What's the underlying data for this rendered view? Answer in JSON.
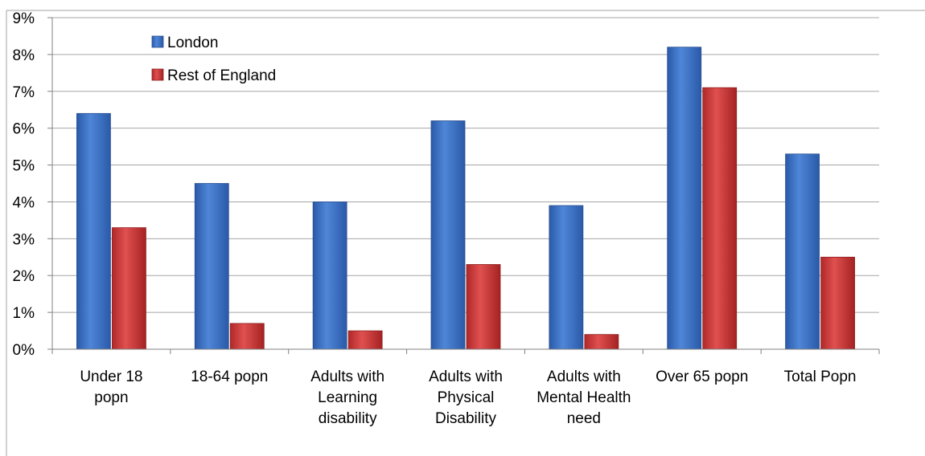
{
  "chart_data": {
    "type": "bar",
    "title": "",
    "xlabel": "",
    "ylabel": "",
    "ylim": [
      0,
      9
    ],
    "y_ticks": [
      "0%",
      "1%",
      "2%",
      "3%",
      "4%",
      "5%",
      "6%",
      "7%",
      "8%",
      "9%"
    ],
    "y_unit": "%",
    "grid": true,
    "legend_position": "top-left",
    "categories": [
      [
        "Under 18",
        "popn"
      ],
      [
        "18-64 popn"
      ],
      [
        "Adults with",
        "Learning",
        "disability"
      ],
      [
        "Adults with",
        "Physical",
        "Disability"
      ],
      [
        "Adults with",
        "Mental Health",
        "need"
      ],
      [
        "Over 65 popn"
      ],
      [
        "Total Popn"
      ]
    ],
    "series": [
      {
        "name": "London",
        "color": "#3b6fc4",
        "values": [
          6.4,
          4.5,
          4.0,
          6.2,
          3.9,
          8.2,
          5.3
        ]
      },
      {
        "name": "Rest of England",
        "color": "#cc3333",
        "values": [
          3.3,
          0.7,
          0.5,
          2.3,
          0.4,
          7.1,
          2.5
        ]
      }
    ]
  }
}
